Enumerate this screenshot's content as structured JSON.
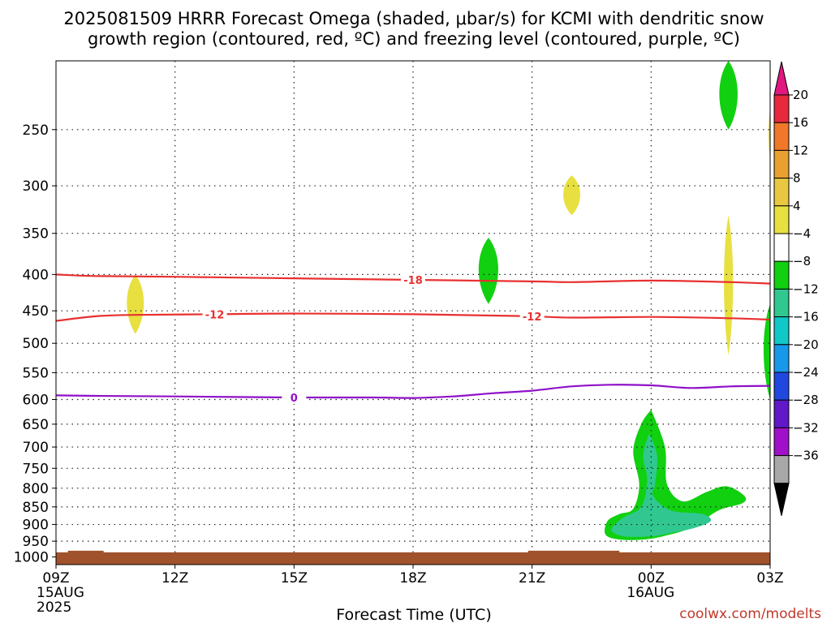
{
  "title_line1": "2025081509 HRRR Forecast Omega (shaded, μbar/s) for KCMI with dendritic snow",
  "title_line2": "growth region (contoured, red, ºC) and freezing level (contoured, purple, ºC)",
  "credit": "coolwx.com/modelts",
  "chart_data": {
    "type": "time-height cross section",
    "xlabel": "Forecast Time (UTC)",
    "ylabel": "",
    "x_ticks": [
      {
        "hours": 0,
        "label": "09Z",
        "sub1": "15AUG",
        "sub2": "2025"
      },
      {
        "hours": 3,
        "label": "12Z",
        "sub1": "",
        "sub2": ""
      },
      {
        "hours": 6,
        "label": "15Z",
        "sub1": "",
        "sub2": ""
      },
      {
        "hours": 9,
        "label": "18Z",
        "sub1": "",
        "sub2": ""
      },
      {
        "hours": 12,
        "label": "21Z",
        "sub1": "",
        "sub2": ""
      },
      {
        "hours": 15,
        "label": "00Z",
        "sub1": "16AUG",
        "sub2": ""
      },
      {
        "hours": 18,
        "label": "03Z",
        "sub1": "",
        "sub2": ""
      }
    ],
    "x_range_hours": [
      0,
      18
    ],
    "y_axis": "pressure (hPa), log scale, inverted",
    "y_range": [
      1025,
      200
    ],
    "y_ticks": [
      250,
      300,
      350,
      400,
      450,
      500,
      550,
      600,
      650,
      700,
      750,
      800,
      850,
      900,
      950,
      1000
    ],
    "grid": true,
    "colorbar": {
      "labels": [
        "20",
        "16",
        "12",
        "8",
        "4",
        "−4",
        "−8",
        "−12",
        "−16",
        "−20",
        "−24",
        "−28",
        "−32",
        "−36"
      ],
      "bin_colors": [
        "#e8283c",
        "#f07828",
        "#e8a030",
        "#e8c840",
        "#e8e040",
        "#ffffff",
        "#10d010",
        "#30c890",
        "#10c8c8",
        "#1898e8",
        "#2048e0",
        "#6018c8",
        "#a010c8",
        "#a8a8a8"
      ],
      "top_triangle_color": "#e01880",
      "bottom_triangle_color": "#000000"
    },
    "contours": [
      {
        "name": "dendritic -18",
        "label": "-18",
        "color": "#e83030",
        "label_at_hours": 9,
        "level_label_hours": [
          9
        ],
        "points": [
          [
            0,
            400
          ],
          [
            1,
            402
          ],
          [
            3,
            403
          ],
          [
            6,
            405
          ],
          [
            9,
            407
          ],
          [
            12,
            409
          ],
          [
            13,
            410
          ],
          [
            15,
            408
          ],
          [
            17,
            410
          ],
          [
            18,
            412
          ]
        ]
      },
      {
        "name": "dendritic -12",
        "label": "-12",
        "color": "#e83030",
        "level_label_hours": [
          4,
          12
        ],
        "points": [
          [
            0,
            465
          ],
          [
            1,
            458
          ],
          [
            2,
            456
          ],
          [
            4,
            455
          ],
          [
            6,
            454
          ],
          [
            9,
            455
          ],
          [
            11,
            457
          ],
          [
            12,
            458
          ],
          [
            13,
            460
          ],
          [
            15,
            459
          ],
          [
            17,
            461
          ],
          [
            18,
            463
          ]
        ]
      },
      {
        "name": "freezing level 0",
        "label": "0",
        "color": "#9010c8",
        "level_label_hours": [
          6
        ],
        "points": [
          [
            0,
            592
          ],
          [
            1,
            593
          ],
          [
            3,
            594
          ],
          [
            6,
            596
          ],
          [
            8,
            596
          ],
          [
            9,
            597
          ],
          [
            10,
            594
          ],
          [
            11,
            588
          ],
          [
            12,
            583
          ],
          [
            13,
            575
          ],
          [
            14,
            572
          ],
          [
            15,
            573
          ],
          [
            16,
            578
          ],
          [
            17,
            575
          ],
          [
            18,
            574
          ]
        ]
      }
    ],
    "omega_regions": [
      {
        "value_bin": "4 to 8",
        "color": "#e8e040",
        "center_hours": 2.0,
        "p_top": 400,
        "p_bot": 485,
        "half_width_hours": 0.26
      },
      {
        "value_bin": "4 to 8",
        "color": "#e8e040",
        "center_hours": 13.0,
        "p_top": 290,
        "p_bot": 330,
        "half_width_hours": 0.26
      },
      {
        "value_bin": "4 to 8",
        "color": "#e8e040",
        "center_hours": 16.95,
        "p_top": 330,
        "p_bot": 520,
        "half_width_hours": 0.14
      },
      {
        "value_bin": "4 to 8",
        "color": "#e8e040",
        "center_hours": 18.0,
        "p_top": 235,
        "p_bot": 275,
        "half_width_hours": 0.05
      },
      {
        "value_bin": "-4 to -8",
        "color": "#10d010",
        "center_hours": 10.9,
        "p_top": 355,
        "p_bot": 440,
        "half_width_hours": 0.3
      },
      {
        "value_bin": "-4 to -8",
        "color": "#10d010",
        "center_hours": 16.95,
        "p_top": 200,
        "p_bot": 250,
        "half_width_hours": 0.28
      },
      {
        "value_bin": "-4 to -8",
        "color": "#10d010",
        "center_hours": 18.0,
        "p_top": 440,
        "p_bot": 600,
        "half_width_hours": 0.2
      }
    ],
    "low_level_descent": {
      "value_bins": [
        "-4 to -8",
        "-8 to -12"
      ],
      "outer_color": "#10d010",
      "inner_color": "#30c890",
      "time_range_hours": [
        13.8,
        17.6
      ],
      "pressure_range": [
        620,
        950
      ]
    },
    "surface_band": {
      "color": "#a0522d",
      "p_top": 985,
      "p_bottom": 1025
    }
  }
}
